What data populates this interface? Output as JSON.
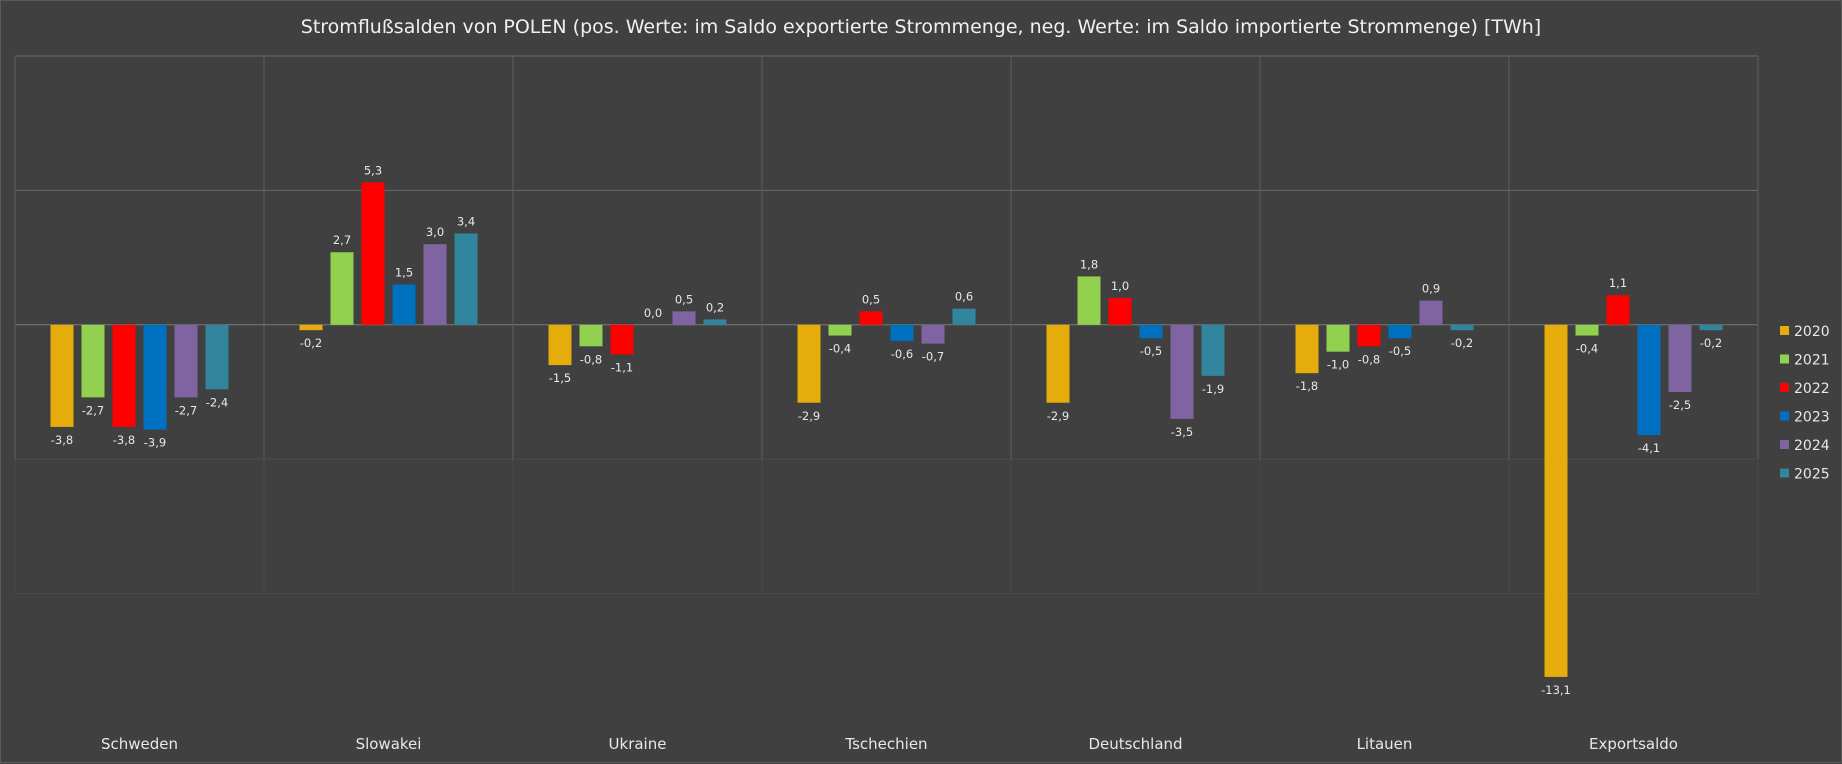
{
  "chart_data": {
    "type": "bar",
    "title": "Stromflußsalden von POLEN (pos. Werte: im Saldo exportierte Strommenge, neg. Werte: im Saldo importierte Strommenge) [TWh]",
    "xlabel": "",
    "ylabel": "",
    "ylim": [
      -15,
      10
    ],
    "categories": [
      "Schweden",
      "Slowakei",
      "Ukraine",
      "Tschechien",
      "Deutschland",
      "Litauen",
      "Exportsaldo"
    ],
    "series": [
      {
        "name": "2020",
        "color": "#E5AC0B",
        "values": [
          -3.8,
          -0.2,
          -1.5,
          -2.9,
          -2.9,
          -1.8,
          -13.1
        ],
        "labels": [
          "-3,8",
          "-0,2",
          "-1,5",
          "-2,9",
          "-2,9",
          "-1,8",
          "-13,1"
        ]
      },
      {
        "name": "2021",
        "color": "#92D050",
        "values": [
          -2.7,
          2.7,
          -0.8,
          -0.4,
          1.8,
          -1.0,
          -0.4
        ],
        "labels": [
          "-2,7",
          "2,7",
          "-0,8",
          "-0,4",
          "1,8",
          "-1,0",
          "-0,4"
        ]
      },
      {
        "name": "2022",
        "color": "#FF0000",
        "values": [
          -3.8,
          5.3,
          -1.1,
          0.5,
          1.0,
          -0.8,
          1.1
        ],
        "labels": [
          "-3,8",
          "5,3",
          "-1,1",
          "0,5",
          "1,0",
          "-0,8",
          "1,1"
        ]
      },
      {
        "name": "2023",
        "color": "#0070C0",
        "values": [
          -3.9,
          1.5,
          0.0,
          -0.6,
          -0.5,
          -0.5,
          -4.1
        ],
        "labels": [
          "-3,9",
          "1,5",
          "0,0",
          "-0,6",
          "-0,5",
          "-0,5",
          "-4,1"
        ]
      },
      {
        "name": "2024",
        "color": "#8064A2",
        "values": [
          -2.7,
          3.0,
          0.5,
          -0.7,
          -3.5,
          0.9,
          -2.5
        ],
        "labels": [
          "-2,7",
          "3,0",
          "0,5",
          "-0,7",
          "-3,5",
          "0,9",
          "-2,5"
        ]
      },
      {
        "name": "2025",
        "color": "#31859C",
        "values": [
          -2.4,
          3.4,
          0.2,
          0.6,
          -1.9,
          -0.2,
          -0.2
        ],
        "labels": [
          "-2,4",
          "3,4",
          "0,2",
          "0,6",
          "-1,9",
          "-0,2",
          "-0,2"
        ]
      }
    ],
    "grid": true,
    "legend": "right"
  }
}
